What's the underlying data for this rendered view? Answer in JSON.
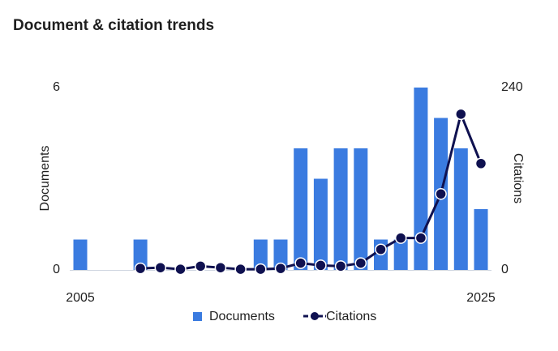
{
  "chart_data": {
    "type": "bar-line",
    "title": "Document & citation trends",
    "categories": [
      "2005",
      null,
      null,
      null,
      null,
      null,
      null,
      null,
      null,
      null,
      null,
      null,
      null,
      null,
      null,
      null,
      null,
      null,
      null,
      null,
      "2025"
    ],
    "ylabel": "Documents",
    "y2label": "Citations",
    "ylim": [
      0,
      6
    ],
    "yticks": [
      0,
      6
    ],
    "y2lim": [
      0,
      240
    ],
    "y2ticks": [
      0,
      240
    ],
    "legend": "bottom",
    "series": [
      {
        "name": "Documents",
        "type": "bar",
        "color": "#3a7be0",
        "values": [
          1,
          0,
          0,
          1,
          0,
          0,
          0,
          0,
          0,
          1,
          1,
          4,
          3,
          4,
          4,
          1,
          1,
          6,
          5,
          4,
          2
        ]
      },
      {
        "name": "Citations",
        "type": "line",
        "axis": "y2",
        "color": "#0f1150",
        "values": [
          null,
          null,
          null,
          2,
          3,
          1,
          5,
          3,
          1,
          1,
          2,
          9,
          6,
          5,
          9,
          27,
          42,
          42,
          100,
          205,
          140
        ]
      }
    ]
  }
}
